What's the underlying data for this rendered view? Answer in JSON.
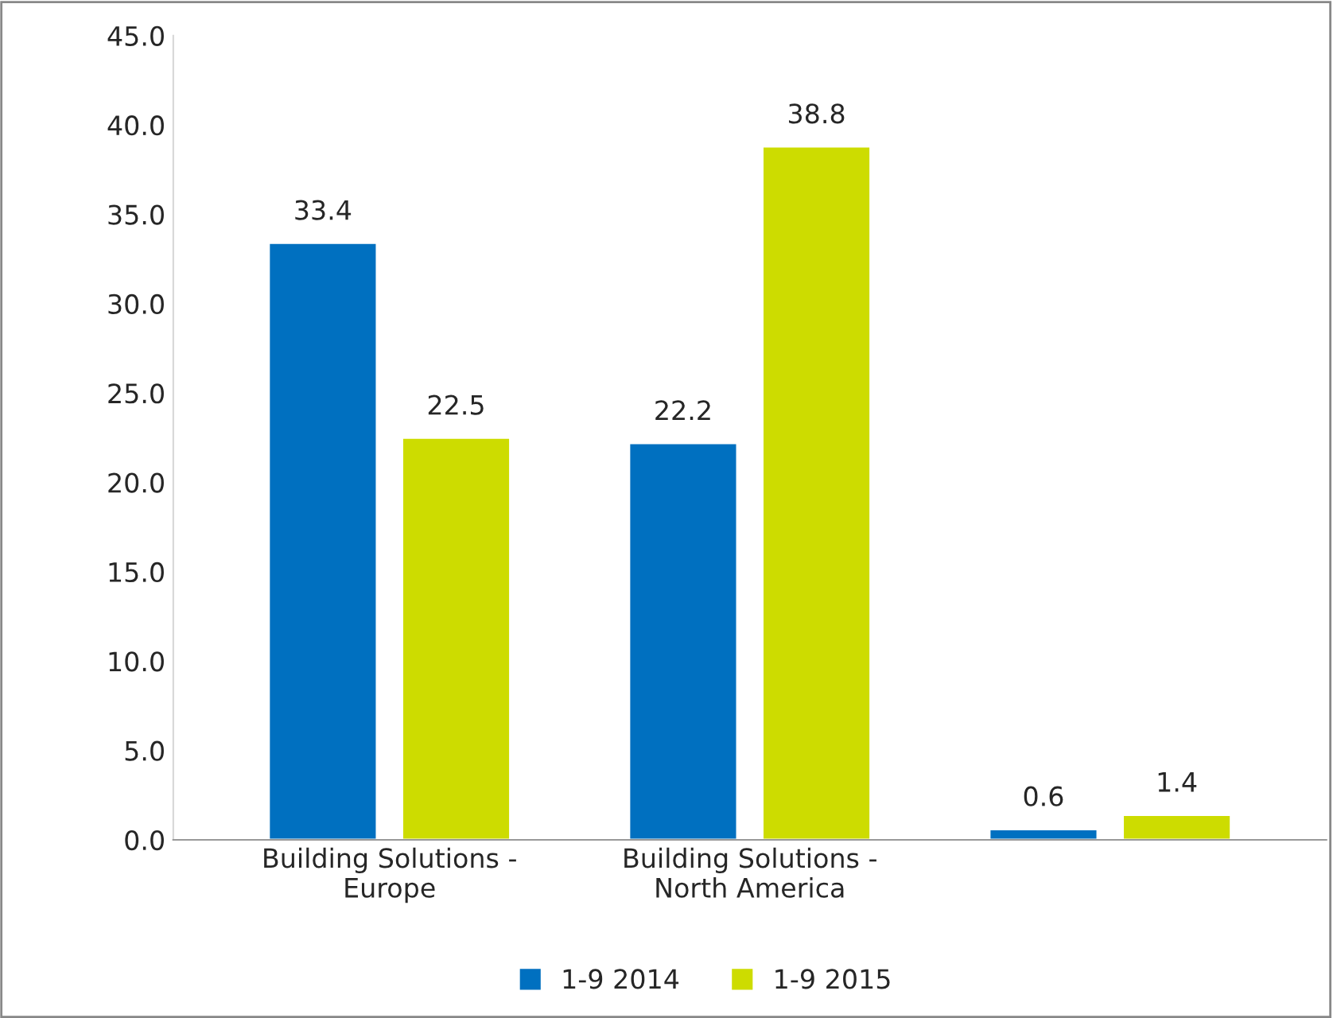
{
  "chart_data": {
    "type": "bar",
    "categories": [
      "Building Solutions -\nEurope",
      "Building Solutions -\nNorth America",
      null
    ],
    "series": [
      {
        "name": "1-9 2014",
        "color": "#0070c0",
        "values": [
          33.4,
          22.2,
          0.6
        ]
      },
      {
        "name": "1-9 2015",
        "color": "#cddc00",
        "values": [
          22.5,
          38.8,
          1.4
        ]
      }
    ],
    "ylim": [
      0,
      45
    ],
    "yticks": [
      {
        "value": 0,
        "label": "0.0"
      },
      {
        "value": 5,
        "label": "5.0"
      },
      {
        "value": 10,
        "label": "10.0"
      },
      {
        "value": 15,
        "label": "15.0"
      },
      {
        "value": 20,
        "label": "20.0"
      },
      {
        "value": 25,
        "label": "25.0"
      },
      {
        "value": 30,
        "label": "30.0"
      },
      {
        "value": 35,
        "label": "35.0"
      },
      {
        "value": 40,
        "label": "40.0"
      },
      {
        "value": 45,
        "label": "45.0"
      }
    ],
    "data_labels": true,
    "legend": "bottom",
    "grid": false
  }
}
